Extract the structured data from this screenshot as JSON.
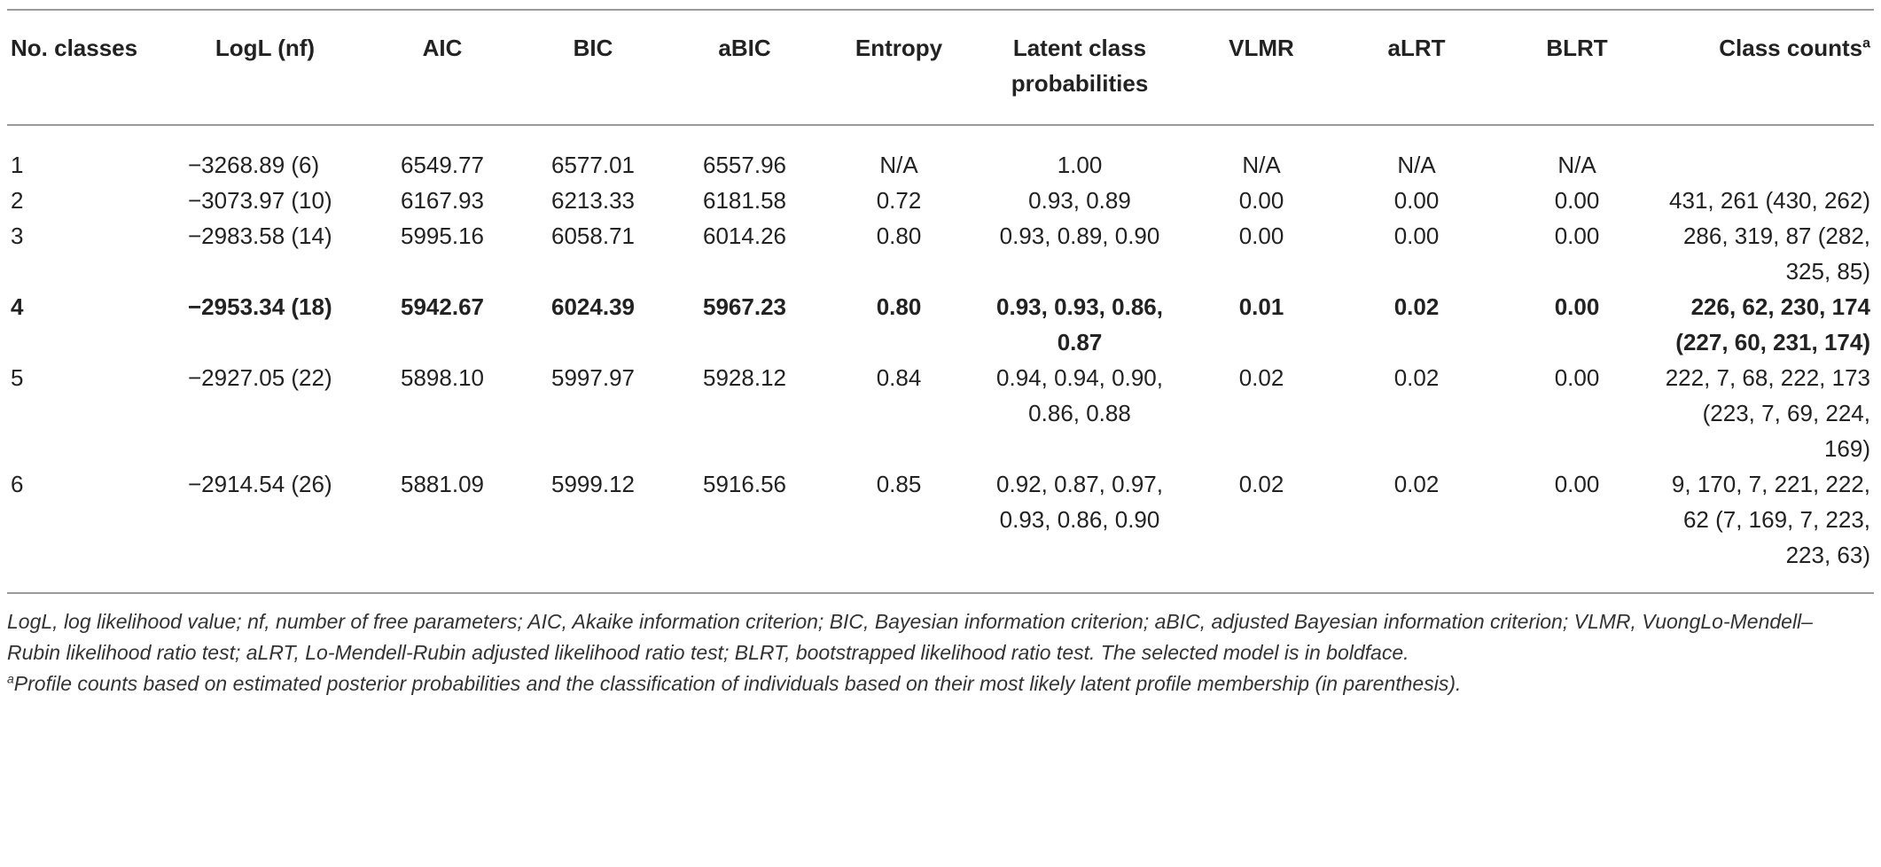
{
  "table": {
    "headers": [
      {
        "label": "No. classes",
        "sup": ""
      },
      {
        "label": "LogL (nf)",
        "sup": ""
      },
      {
        "label": "AIC",
        "sup": ""
      },
      {
        "label": "BIC",
        "sup": ""
      },
      {
        "label": "aBIC",
        "sup": ""
      },
      {
        "label": "Entropy",
        "sup": ""
      },
      {
        "label": "Latent class probabilities",
        "sup": ""
      },
      {
        "label": "VLMR",
        "sup": ""
      },
      {
        "label": "aLRT",
        "sup": ""
      },
      {
        "label": "BLRT",
        "sup": ""
      },
      {
        "label": "Class counts",
        "sup": "a"
      }
    ],
    "rows": [
      {
        "cells": [
          "1",
          "−3268.89 (6)",
          "6549.77",
          "6577.01",
          "6557.96",
          "N/A",
          "1.00",
          "N/A",
          "N/A",
          "N/A",
          ""
        ],
        "bold": false
      },
      {
        "cells": [
          "2",
          "−3073.97 (10)",
          "6167.93",
          "6213.33",
          "6181.58",
          "0.72",
          "0.93, 0.89",
          "0.00",
          "0.00",
          "0.00",
          "431, 261 (430, 262)"
        ],
        "bold": false
      },
      {
        "cells": [
          "3",
          "−2983.58 (14)",
          "5995.16",
          "6058.71",
          "6014.26",
          "0.80",
          "0.93, 0.89, 0.90",
          "0.00",
          "0.00",
          "0.00",
          "286, 319, 87 (282, 325, 85)"
        ],
        "bold": false
      },
      {
        "cells": [
          "4",
          "−2953.34 (18)",
          "5942.67",
          "6024.39",
          "5967.23",
          "0.80",
          "0.93, 0.93, 0.86, 0.87",
          "0.01",
          "0.02",
          "0.00",
          "226, 62, 230, 174 (227, 60, 231, 174)"
        ],
        "bold": true
      },
      {
        "cells": [
          "5",
          "−2927.05 (22)",
          "5898.10",
          "5997.97",
          "5928.12",
          "0.84",
          "0.94, 0.94, 0.90, 0.86, 0.88",
          "0.02",
          "0.02",
          "0.00",
          "222, 7, 68, 222, 173 (223, 7, 69, 224, 169)"
        ],
        "bold": false
      },
      {
        "cells": [
          "6",
          "−2914.54 (26)",
          "5881.09",
          "5999.12",
          "5916.56",
          "0.85",
          "0.92, 0.87, 0.97, 0.93, 0.86, 0.90",
          "0.02",
          "0.02",
          "0.00",
          "9, 170, 7, 221, 222, 62 (7, 169, 7, 223, 223, 63)"
        ],
        "bold": false
      }
    ]
  },
  "footnotes": {
    "abbreviations": "LogL, log likelihood value; nf, number of free parameters; AIC, Akaike information criterion; BIC, Bayesian information criterion; aBIC, adjusted Bayesian information criterion; VLMR, VuongLo-Mendell–Rubin likelihood ratio test; aLRT, Lo-Mendell-Rubin adjusted likelihood ratio test; BLRT, bootstrapped likelihood ratio test. The selected model is in boldface.",
    "note_marker": "a",
    "note": "Profile counts based on estimated posterior probabilities and the classification of individuals based on their most likely latent profile membership (in parenthesis)."
  }
}
